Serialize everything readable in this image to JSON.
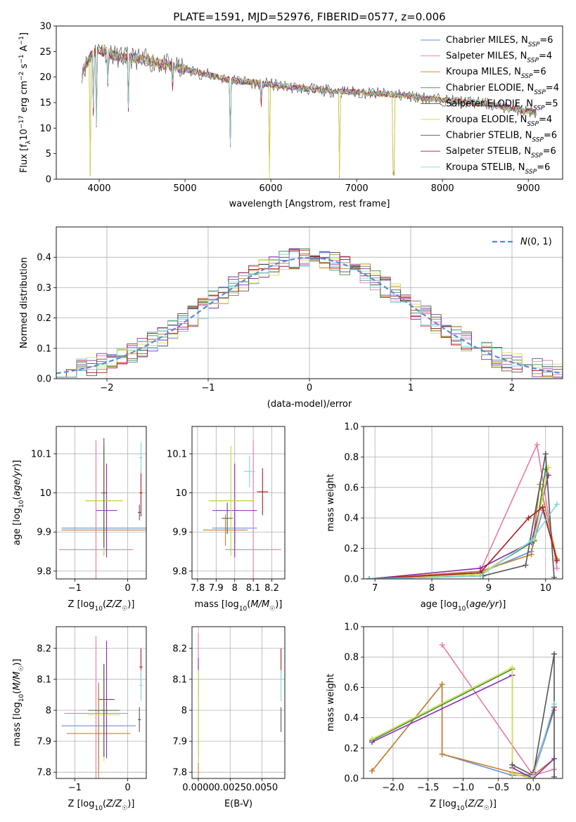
{
  "figure": {
    "title": "PLATE=1591, MJD=52976, FIBERID=0577, z=0.006"
  },
  "colors": {
    "chabrier_miles": "#6b8fd6",
    "salpeter_miles": "#e879a8",
    "kroupa_miles": "#c97f2a",
    "chabrier_elodie": "#3d8a3d",
    "salpeter_elodie": "#8a2ab5",
    "kroupa_elodie": "#d4e04a",
    "chabrier_stelib": "#555555",
    "salpeter_stelib": "#b01c1c",
    "kroupa_stelib": "#7fd6dc"
  },
  "chart_data": [
    {
      "id": "spectrum",
      "type": "line",
      "xlabel": "wavelength [Angstrom, rest frame]",
      "ylabel": "Flux [f_λ 10^-17 erg cm^-2 s^-1 A^-1]",
      "xlim": [
        3500,
        9400
      ],
      "ylim": [
        0,
        30
      ],
      "xticks": [
        4000,
        5000,
        6000,
        7000,
        8000,
        9000
      ],
      "yticks": [
        0,
        5,
        10,
        15,
        20,
        25,
        30
      ],
      "legend_position": "top-right",
      "legend": [
        {
          "label": "Chabrier MILES, N",
          "sub": "SSP",
          "suffix": "=6",
          "color_key": "chabrier_miles"
        },
        {
          "label": "Salpeter MILES, N",
          "sub": "SSP",
          "suffix": "=4",
          "color_key": "salpeter_miles"
        },
        {
          "label": "Kroupa MILES, N",
          "sub": "SSP",
          "suffix": "=6",
          "color_key": "kroupa_miles"
        },
        {
          "label": "Chabrier ELODIE, N",
          "sub": "SSP",
          "suffix": "=4",
          "color_key": "chabrier_elodie"
        },
        {
          "label": "Salpeter ELODIE, N",
          "sub": "SSP",
          "suffix": "=5",
          "color_key": "salpeter_elodie"
        },
        {
          "label": "Kroupa ELODIE, N",
          "sub": "SSP",
          "suffix": "=4",
          "color_key": "kroupa_elodie"
        },
        {
          "label": "Chabrier STELIB, N",
          "sub": "SSP",
          "suffix": "=6",
          "color_key": "chabrier_stelib"
        },
        {
          "label": "Salpeter STELIB, N",
          "sub": "SSP",
          "suffix": "=6",
          "color_key": "salpeter_stelib"
        },
        {
          "label": "Kroupa STELIB, N",
          "sub": "SSP",
          "suffix": "=6",
          "color_key": "kroupa_stelib"
        }
      ],
      "continuum": [
        [
          3800,
          21
        ],
        [
          3900,
          24
        ],
        [
          4000,
          25.5
        ],
        [
          4200,
          24
        ],
        [
          4500,
          23.5
        ],
        [
          5000,
          21.5
        ],
        [
          5500,
          19.5
        ],
        [
          6000,
          18.5
        ],
        [
          6500,
          17.5
        ],
        [
          7000,
          17
        ],
        [
          7500,
          16.5
        ],
        [
          8000,
          15.5
        ],
        [
          8500,
          14.8
        ],
        [
          9100,
          13
        ]
      ],
      "absorption_dips": [
        [
          3900,
          0
        ],
        [
          3935,
          12
        ],
        [
          3970,
          10
        ],
        [
          4100,
          18
        ],
        [
          4340,
          13
        ],
        [
          4860,
          17
        ],
        [
          5530,
          6
        ],
        [
          5890,
          14
        ],
        [
          5985,
          0
        ],
        [
          6800,
          0
        ],
        [
          7430,
          0
        ]
      ]
    },
    {
      "id": "residuals",
      "type": "line",
      "xlabel": "(data-model)/error",
      "ylabel": "Normed distribution",
      "xlim": [
        -2.5,
        2.5
      ],
      "ylim": [
        0,
        0.5
      ],
      "xticks": [
        -2,
        -1,
        0,
        1,
        2
      ],
      "xticklabels": [
        "−2",
        "−1",
        "0",
        "1",
        "2"
      ],
      "yticks": [
        0.0,
        0.1,
        0.2,
        0.3,
        0.4
      ],
      "grid": true,
      "legend_position": "top-right",
      "gaussian_label": "N(0,1)",
      "bin_width": 0.1
    },
    {
      "id": "age_vs_Z",
      "type": "scatter",
      "xlabel": "Z [log10(Z/Z☉)]",
      "ylabel": "age [log10(age/yr)]",
      "xlim": [
        -1.35,
        0.35
      ],
      "ylim": [
        9.78,
        10.17
      ],
      "xticks": [
        -1,
        0
      ],
      "xticklabels": [
        "−1",
        "0"
      ],
      "yticks": [
        9.8,
        9.9,
        10.0,
        10.1
      ],
      "grid": true,
      "points": [
        {
          "c": "chabrier_miles",
          "x": -0.45,
          "xe": 0.8,
          "y": 9.91,
          "ye": 0.04
        },
        {
          "c": "salpeter_miles",
          "x": -0.6,
          "xe": 0.7,
          "y": 9.855,
          "ye": 0.28
        },
        {
          "c": "kroupa_miles",
          "x": -0.45,
          "xe": 0.8,
          "y": 9.905,
          "ye": 0.04
        },
        {
          "c": "chabrier_elodie",
          "x": -0.45,
          "xe": 0.35,
          "y": 9.98,
          "ye": 0.14
        },
        {
          "c": "salpeter_elodie",
          "x": -0.4,
          "xe": 0.2,
          "y": 9.955,
          "ye": 0.12
        },
        {
          "c": "kroupa_elodie",
          "x": -0.45,
          "xe": 0.35,
          "y": 9.98,
          "ye": 0.14
        },
        {
          "c": "chabrier_stelib",
          "x": -0.45,
          "xe": 0.05,
          "y": 10.0,
          "ye": 0.14
        },
        {
          "c": "salpeter_stelib",
          "x": 0.25,
          "xe": 0.03,
          "y": 10.0,
          "ye": 0.06
        },
        {
          "c": "kroupa_stelib",
          "x": 0.25,
          "xe": 0.03,
          "y": 10.09,
          "ye": 0.04
        },
        {
          "c": "chabrier_stelib",
          "x": 0.22,
          "xe": 0.03,
          "y": 9.95,
          "ye": 0.02
        }
      ]
    },
    {
      "id": "age_vs_mass",
      "type": "scatter",
      "xlabel": "mass [log10(M/M☉)]",
      "xlim": [
        7.77,
        8.27
      ],
      "ylim": [
        9.78,
        10.17
      ],
      "xticks": [
        7.8,
        7.9,
        8.0,
        8.1,
        8.2
      ],
      "yticks": [
        9.8,
        9.9,
        10.0,
        10.1
      ],
      "grid": true,
      "points": [
        {
          "c": "chabrier_miles",
          "x": 8.0,
          "xe": 0.12,
          "y": 9.91,
          "ye": 0.04
        },
        {
          "c": "salpeter_miles",
          "x": 8.1,
          "xe": 0.15,
          "y": 9.855,
          "ye": 0.28
        },
        {
          "c": "kroupa_miles",
          "x": 7.95,
          "xe": 0.12,
          "y": 9.905,
          "ye": 0.04
        },
        {
          "c": "chabrier_elodie",
          "x": 7.98,
          "xe": 0.12,
          "y": 9.98,
          "ye": 0.14
        },
        {
          "c": "salpeter_elodie",
          "x": 8.0,
          "xe": 0.12,
          "y": 9.955,
          "ye": 0.12
        },
        {
          "c": "kroupa_elodie",
          "x": 7.98,
          "xe": 0.12,
          "y": 9.98,
          "ye": 0.14
        },
        {
          "c": "chabrier_stelib",
          "x": 7.96,
          "xe": 0.03,
          "y": 9.935,
          "ye": 0.04
        },
        {
          "c": "salpeter_stelib",
          "x": 8.15,
          "xe": 0.03,
          "y": 10.003,
          "ye": 0.06
        },
        {
          "c": "kroupa_stelib",
          "x": 8.08,
          "xe": 0.03,
          "y": 10.055,
          "ye": 0.04
        }
      ]
    },
    {
      "id": "weight_vs_age",
      "type": "line",
      "xlabel": "age [log10(age/yr)]",
      "ylabel": "mass weight",
      "xlim": [
        6.8,
        10.3
      ],
      "ylim": [
        0,
        1.0
      ],
      "xticks": [
        7,
        8,
        9,
        10
      ],
      "yticks": [
        0.0,
        0.2,
        0.4,
        0.6,
        0.8,
        1.0
      ],
      "grid": true,
      "series": [
        {
          "c": "chabrier_miles",
          "x": [
            6.9,
            8.85,
            9.75,
            9.95,
            10.2
          ],
          "y": [
            0.0,
            0.04,
            0.18,
            0.45,
            0.13
          ]
        },
        {
          "c": "salpeter_miles",
          "x": [
            6.9,
            8.85,
            9.85,
            10.2
          ],
          "y": [
            0.0,
            0.05,
            0.88,
            0.07
          ]
        },
        {
          "c": "kroupa_miles",
          "x": [
            6.9,
            8.85,
            9.75,
            9.9,
            10.2
          ],
          "y": [
            0.0,
            0.05,
            0.16,
            0.62,
            0.13
          ]
        },
        {
          "c": "chabrier_elodie",
          "x": [
            6.9,
            8.85,
            9.8,
            10.0
          ],
          "y": [
            0.0,
            0.03,
            0.25,
            0.72
          ]
        },
        {
          "c": "salpeter_elodie",
          "x": [
            6.9,
            8.85,
            9.75,
            10.05
          ],
          "y": [
            0.0,
            0.07,
            0.24,
            0.68
          ]
        },
        {
          "c": "kroupa_elodie",
          "x": [
            6.9,
            8.85,
            9.8,
            10.05
          ],
          "y": [
            0.0,
            0.03,
            0.26,
            0.73
          ]
        },
        {
          "c": "chabrier_stelib",
          "x": [
            6.9,
            8.9,
            9.65,
            10.0,
            10.15
          ],
          "y": [
            0.0,
            0.02,
            0.09,
            0.82,
            0.01
          ]
        },
        {
          "c": "salpeter_stelib",
          "x": [
            6.9,
            8.85,
            9.7,
            9.95,
            10.2
          ],
          "y": [
            0.0,
            0.04,
            0.4,
            0.47,
            0.12
          ]
        },
        {
          "c": "kroupa_stelib",
          "x": [
            6.9,
            8.85,
            9.75,
            10.2
          ],
          "y": [
            0.0,
            0.02,
            0.25,
            0.49
          ]
        }
      ]
    },
    {
      "id": "mass_vs_Z",
      "type": "scatter",
      "xlabel": "Z [log10(Z/Z☉)]",
      "ylabel": "mass [log10(M/M☉)]",
      "xlim": [
        -1.35,
        0.35
      ],
      "ylim": [
        7.78,
        8.27
      ],
      "xticks": [
        -1,
        0
      ],
      "xticklabels": [
        "−1",
        "0"
      ],
      "yticks": [
        7.8,
        7.9,
        8.0,
        8.1,
        8.2
      ],
      "grid": true,
      "points": [
        {
          "c": "chabrier_miles",
          "x": -0.55,
          "xe": 0.7,
          "y": 7.95,
          "ye": 0.14
        },
        {
          "c": "salpeter_miles",
          "x": -0.6,
          "xe": 0.6,
          "y": 7.99,
          "ye": 0.25
        },
        {
          "c": "kroupa_miles",
          "x": -0.55,
          "xe": 0.6,
          "y": 7.925,
          "ye": 0.16
        },
        {
          "c": "chabrier_elodie",
          "x": -0.45,
          "xe": 0.3,
          "y": 8.0,
          "ye": 0.15
        },
        {
          "c": "salpeter_elodie",
          "x": -0.4,
          "xe": 0.15,
          "y": 8.035,
          "ye": 0.19
        },
        {
          "c": "kroupa_elodie",
          "x": -0.45,
          "xe": 0.3,
          "y": 7.985,
          "ye": 0.15
        },
        {
          "c": "chabrier_stelib",
          "x": -0.45,
          "xe": 0.05,
          "y": 8.0,
          "ye": 0.15
        },
        {
          "c": "salpeter_stelib",
          "x": 0.25,
          "xe": 0.03,
          "y": 8.14,
          "ye": 0.06
        },
        {
          "c": "kroupa_stelib",
          "x": 0.25,
          "xe": 0.03,
          "y": 8.08,
          "ye": 0.05
        },
        {
          "c": "chabrier_stelib",
          "x": 0.22,
          "xe": 0.03,
          "y": 7.97,
          "ye": 0.04
        }
      ]
    },
    {
      "id": "mass_vs_ebv",
      "type": "scatter",
      "xlabel": "E(B-V)",
      "xlim": [
        -0.0005,
        0.0068
      ],
      "ylim": [
        7.78,
        8.27
      ],
      "xticks": [
        0.0,
        0.0025,
        0.005
      ],
      "xticklabels": [
        "0.0000",
        "0.0025",
        "0.0050"
      ],
      "yticks": [
        7.8,
        7.9,
        8.0,
        8.1,
        8.2
      ],
      "grid": true,
      "points": [
        {
          "c": "chabrier_miles",
          "x": 0.0,
          "xe": 0.0,
          "y": 7.95,
          "ye": 0.14
        },
        {
          "c": "salpeter_miles",
          "x": 0.0,
          "xe": 0.0,
          "y": 8.05,
          "ye": 0.2
        },
        {
          "c": "kroupa_miles",
          "x": 0.0,
          "xe": 0.0,
          "y": 7.93,
          "ye": 0.16
        },
        {
          "c": "chabrier_elodie",
          "x": 0.0,
          "xe": 0.0,
          "y": 8.0,
          "ye": 0.15
        },
        {
          "c": "salpeter_elodie",
          "x": 0.0,
          "xe": 0.0,
          "y": 8.11,
          "ye": 0.06
        },
        {
          "c": "kroupa_elodie",
          "x": 0.0,
          "xe": 0.0,
          "y": 7.98,
          "ye": 0.15
        },
        {
          "c": "chabrier_stelib",
          "x": 0.0065,
          "xe": 0.0,
          "y": 7.97,
          "ye": 0.04
        },
        {
          "c": "salpeter_stelib",
          "x": 0.0065,
          "xe": 0.0,
          "y": 8.16,
          "ye": 0.04
        },
        {
          "c": "kroupa_stelib",
          "x": 0.0065,
          "xe": 0.0,
          "y": 8.08,
          "ye": 0.05
        }
      ]
    },
    {
      "id": "weight_vs_Z",
      "type": "line",
      "xlabel": "Z [log10(Z/Z☉)]",
      "ylabel": "mass weight",
      "xlim": [
        -2.42,
        0.42
      ],
      "ylim": [
        0,
        1.0
      ],
      "xticks": [
        -2.0,
        -1.5,
        -1.0,
        -0.5,
        0.0
      ],
      "xticklabels": [
        "−2.0",
        "−1.5",
        "−1.0",
        "−0.5",
        "0.0"
      ],
      "yticks": [
        0.0,
        0.2,
        0.4,
        0.6,
        0.8,
        1.0
      ],
      "grid": true,
      "series": [
        {
          "c": "chabrier_miles",
          "x": [
            -2.3,
            -1.3,
            -1.3,
            -0.3,
            0.0,
            0.3
          ],
          "y": [
            0.05,
            0.62,
            0.16,
            0.02,
            0.02,
            0.45
          ]
        },
        {
          "c": "salpeter_miles",
          "x": [
            -1.3,
            0.0,
            0.3
          ],
          "y": [
            0.88,
            0.02,
            0.06
          ]
        },
        {
          "c": "kroupa_miles",
          "x": [
            -2.3,
            -1.3,
            -1.3,
            -0.3,
            0.0,
            0.3
          ],
          "y": [
            0.05,
            0.62,
            0.16,
            0.04,
            0.02,
            0.13
          ]
        },
        {
          "c": "chabrier_elodie",
          "x": [
            -2.3,
            -0.3,
            -0.3,
            0.0
          ],
          "y": [
            0.25,
            0.72,
            0.03,
            0.0
          ]
        },
        {
          "c": "salpeter_elodie",
          "x": [
            -2.3,
            -0.3,
            -0.3,
            0.0,
            0.3
          ],
          "y": [
            0.24,
            0.68,
            0.07,
            0.0,
            0.13
          ]
        },
        {
          "c": "kroupa_elodie",
          "x": [
            -2.3,
            -0.3,
            -0.3,
            0.0
          ],
          "y": [
            0.26,
            0.73,
            0.03,
            0.0
          ]
        },
        {
          "c": "chabrier_stelib",
          "x": [
            -0.3,
            0.0,
            0.3,
            0.3
          ],
          "y": [
            0.09,
            0.02,
            0.82,
            0.01
          ]
        },
        {
          "c": "salpeter_stelib",
          "x": [
            0.0,
            0.3
          ],
          "y": [
            0.04,
            0.47
          ]
        },
        {
          "c": "kroupa_stelib",
          "x": [
            0.0,
            0.3
          ],
          "y": [
            0.02,
            0.49
          ]
        }
      ]
    }
  ]
}
